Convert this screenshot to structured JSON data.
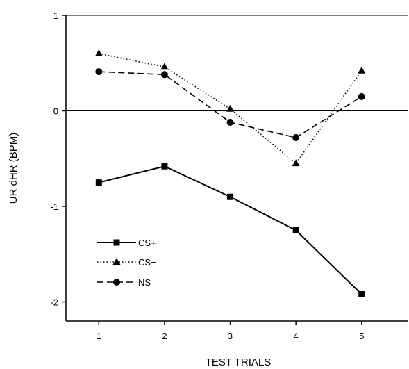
{
  "chart_data": {
    "type": "line",
    "xlabel": "TEST TRIALS",
    "ylabel": "UR dHR (BPM)",
    "x": [
      1,
      2,
      3,
      4,
      5
    ],
    "xlim": [
      0.5,
      5.7
    ],
    "ylim": [
      -2.2,
      1
    ],
    "xticks": [
      "1",
      "2",
      "3",
      "4",
      "5"
    ],
    "yticks": [
      "1",
      "0",
      "-1",
      "-2"
    ],
    "ytick_values": [
      1,
      0,
      -1,
      -2
    ],
    "reference_line_y": 0,
    "grid": false,
    "legend_position": "lower-left",
    "series": [
      {
        "name": "CS+",
        "values": [
          -0.75,
          -0.58,
          -0.9,
          -1.25,
          -1.92
        ],
        "line": "solid",
        "marker": "square"
      },
      {
        "name": "CS−",
        "values": [
          0.6,
          0.46,
          0.02,
          -0.55,
          0.42
        ],
        "line": "dotted",
        "marker": "triangle"
      },
      {
        "name": "NS",
        "values": [
          0.41,
          0.38,
          -0.12,
          -0.28,
          0.15
        ],
        "line": "dashed",
        "marker": "circle"
      }
    ],
    "color": "#000000"
  }
}
